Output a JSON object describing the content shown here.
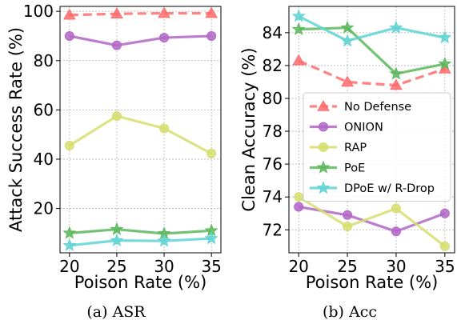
{
  "chart_data": [
    {
      "type": "line",
      "caption": "(a)  ASR",
      "xlabel": "Poison Rate (%)",
      "ylabel": "Attack Success Rate (%)",
      "x": [
        20,
        25,
        30,
        35
      ],
      "xticks": [
        "20",
        "25",
        "30",
        "35"
      ],
      "xlim": [
        19,
        36
      ],
      "ylim": [
        2,
        102
      ],
      "yticks": [
        20,
        40,
        60,
        80,
        100
      ],
      "grid": true,
      "series": [
        {
          "name": "No Defense",
          "values": [
            98.5,
            99.0,
            99.2,
            99.2
          ],
          "color": "#ff6b6b",
          "dashed": true,
          "marker": "triangle"
        },
        {
          "name": "ONION",
          "values": [
            90.0,
            86.2,
            89.3,
            90.0
          ],
          "color": "#b266c7",
          "dashed": false,
          "marker": "circle"
        },
        {
          "name": "RAP",
          "values": [
            45.5,
            57.5,
            52.5,
            42.3
          ],
          "color": "#d6de6e",
          "dashed": false,
          "marker": "circle"
        },
        {
          "name": "PoE",
          "values": [
            10.0,
            11.5,
            9.8,
            11.0
          ],
          "color": "#5cb85c",
          "dashed": false,
          "marker": "star"
        },
        {
          "name": "DPoE w/ R-Drop",
          "values": [
            5.0,
            7.0,
            6.8,
            7.8
          ],
          "color": "#5fd3d3",
          "dashed": false,
          "marker": "star"
        }
      ]
    },
    {
      "type": "line",
      "caption": "(b)  Acc",
      "xlabel": "Poison Rate (%)",
      "ylabel": "Clean Accuracy (%)",
      "x": [
        20,
        25,
        30,
        35
      ],
      "xticks": [
        "20",
        "25",
        "30",
        "35"
      ],
      "xlim": [
        19,
        36
      ],
      "ylim": [
        70.6,
        85.6
      ],
      "yticks": [
        72,
        74,
        76,
        78,
        80,
        82,
        84
      ],
      "grid": true,
      "legend": "center-right",
      "series": [
        {
          "name": "No Defense",
          "values": [
            82.3,
            81.0,
            80.8,
            81.8
          ],
          "color": "#ff6b6b",
          "dashed": true,
          "marker": "triangle"
        },
        {
          "name": "ONION",
          "values": [
            73.4,
            72.9,
            71.9,
            73.0
          ],
          "color": "#b266c7",
          "dashed": false,
          "marker": "circle"
        },
        {
          "name": "RAP",
          "values": [
            74.0,
            72.2,
            73.3,
            71.0
          ],
          "color": "#d6de6e",
          "dashed": false,
          "marker": "circle"
        },
        {
          "name": "PoE",
          "values": [
            84.2,
            84.3,
            81.5,
            82.1
          ],
          "color": "#5cb85c",
          "dashed": false,
          "marker": "star"
        },
        {
          "name": "DPoE w/ R-Drop",
          "values": [
            85.0,
            83.5,
            84.3,
            83.7
          ],
          "color": "#5fd3d3",
          "dashed": false,
          "marker": "star"
        }
      ]
    }
  ]
}
